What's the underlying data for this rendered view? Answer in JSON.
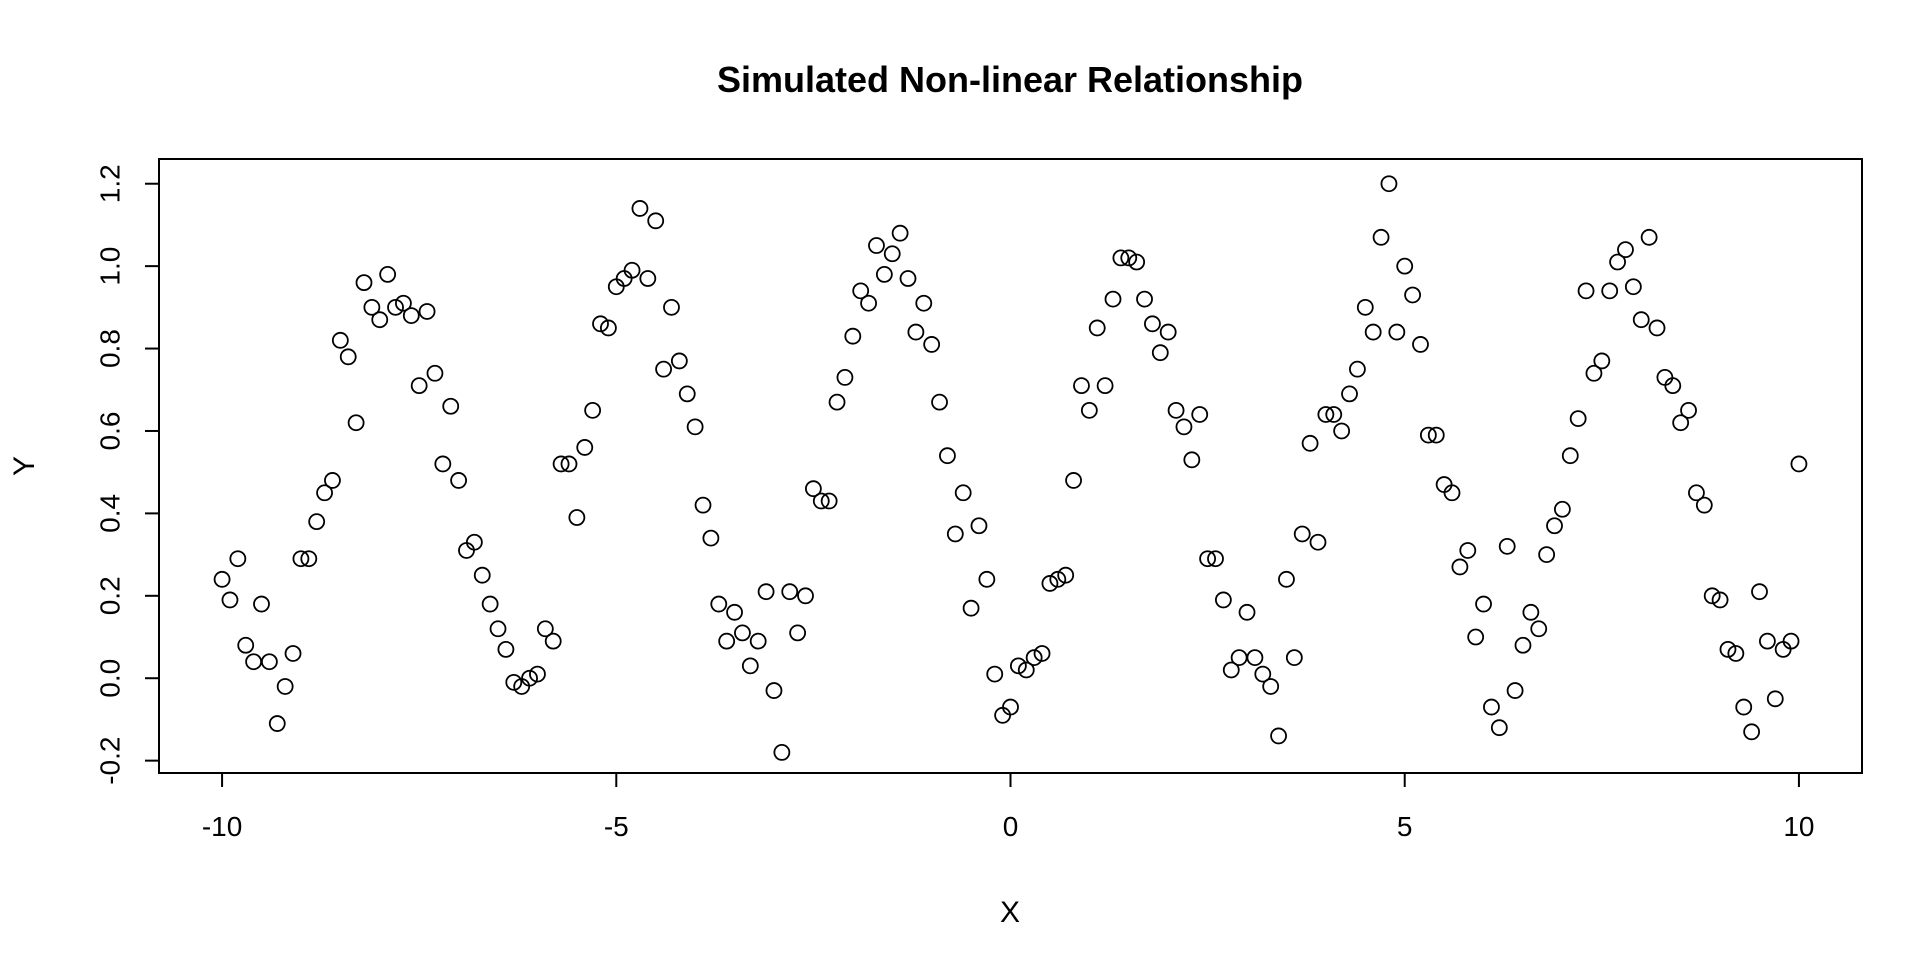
{
  "chart_data": {
    "type": "scatter",
    "title": "Simulated Non-linear Relationship",
    "xlabel": "X",
    "ylabel": "Y",
    "xlim": [
      -10.8,
      10.8
    ],
    "ylim": [
      -0.23,
      1.26
    ],
    "xticks": [
      -10,
      -5,
      0,
      5,
      10
    ],
    "xtick_labels": [
      "-10",
      "-5",
      "0",
      "5",
      "10"
    ],
    "yticks": [
      -0.2,
      0.0,
      0.2,
      0.4,
      0.6,
      0.8,
      1.0,
      1.2
    ],
    "ytick_labels": [
      "-0.2",
      "0.0",
      "0.2",
      "0.4",
      "0.6",
      "0.8",
      "1.0",
      "1.2"
    ],
    "grid": false,
    "marker": "open-circle",
    "marker_color": "#000000",
    "points": [
      [
        -10.0,
        0.24
      ],
      [
        -9.9,
        0.19
      ],
      [
        -9.8,
        0.29
      ],
      [
        -9.7,
        0.08
      ],
      [
        -9.6,
        0.04
      ],
      [
        -9.5,
        0.18
      ],
      [
        -9.4,
        0.04
      ],
      [
        -9.3,
        -0.11
      ],
      [
        -9.2,
        -0.02
      ],
      [
        -9.1,
        0.06
      ],
      [
        -9.0,
        0.29
      ],
      [
        -8.9,
        0.29
      ],
      [
        -8.8,
        0.38
      ],
      [
        -8.7,
        0.45
      ],
      [
        -8.6,
        0.48
      ],
      [
        -8.5,
        0.82
      ],
      [
        -8.4,
        0.78
      ],
      [
        -8.3,
        0.62
      ],
      [
        -8.2,
        0.96
      ],
      [
        -8.1,
        0.9
      ],
      [
        -8.0,
        0.87
      ],
      [
        -7.9,
        0.98
      ],
      [
        -7.8,
        0.9
      ],
      [
        -7.7,
        0.91
      ],
      [
        -7.6,
        0.88
      ],
      [
        -7.5,
        0.71
      ],
      [
        -7.4,
        0.89
      ],
      [
        -7.3,
        0.74
      ],
      [
        -7.2,
        0.52
      ],
      [
        -7.1,
        0.66
      ],
      [
        -7.0,
        0.48
      ],
      [
        -6.9,
        0.31
      ],
      [
        -6.8,
        0.33
      ],
      [
        -6.7,
        0.25
      ],
      [
        -6.6,
        0.18
      ],
      [
        -6.5,
        0.12
      ],
      [
        -6.4,
        0.07
      ],
      [
        -6.3,
        -0.01
      ],
      [
        -6.2,
        -0.02
      ],
      [
        -6.1,
        0.0
      ],
      [
        -6.0,
        0.01
      ],
      [
        -5.9,
        0.12
      ],
      [
        -5.8,
        0.09
      ],
      [
        -5.7,
        0.52
      ],
      [
        -5.6,
        0.52
      ],
      [
        -5.5,
        0.39
      ],
      [
        -5.4,
        0.56
      ],
      [
        -5.3,
        0.65
      ],
      [
        -5.2,
        0.86
      ],
      [
        -5.1,
        0.85
      ],
      [
        -5.0,
        0.95
      ],
      [
        -4.9,
        0.97
      ],
      [
        -4.8,
        0.99
      ],
      [
        -4.7,
        1.14
      ],
      [
        -4.6,
        0.97
      ],
      [
        -4.5,
        1.11
      ],
      [
        -4.4,
        0.75
      ],
      [
        -4.3,
        0.9
      ],
      [
        -4.2,
        0.77
      ],
      [
        -4.1,
        0.69
      ],
      [
        -4.0,
        0.61
      ],
      [
        -3.9,
        0.42
      ],
      [
        -3.8,
        0.34
      ],
      [
        -3.7,
        0.18
      ],
      [
        -3.6,
        0.09
      ],
      [
        -3.5,
        0.16
      ],
      [
        -3.4,
        0.11
      ],
      [
        -3.3,
        0.03
      ],
      [
        -3.2,
        0.09
      ],
      [
        -3.1,
        0.21
      ],
      [
        -3.0,
        -0.03
      ],
      [
        -2.9,
        -0.18
      ],
      [
        -2.8,
        0.21
      ],
      [
        -2.7,
        0.11
      ],
      [
        -2.6,
        0.2
      ],
      [
        -2.5,
        0.46
      ],
      [
        -2.4,
        0.43
      ],
      [
        -2.3,
        0.43
      ],
      [
        -2.2,
        0.67
      ],
      [
        -2.1,
        0.73
      ],
      [
        -2.0,
        0.83
      ],
      [
        -1.9,
        0.94
      ],
      [
        -1.8,
        0.91
      ],
      [
        -1.7,
        1.05
      ],
      [
        -1.6,
        0.98
      ],
      [
        -1.5,
        1.03
      ],
      [
        -1.4,
        1.08
      ],
      [
        -1.3,
        0.97
      ],
      [
        -1.2,
        0.84
      ],
      [
        -1.1,
        0.91
      ],
      [
        -1.0,
        0.81
      ],
      [
        -0.9,
        0.67
      ],
      [
        -0.8,
        0.54
      ],
      [
        -0.7,
        0.35
      ],
      [
        -0.6,
        0.45
      ],
      [
        -0.5,
        0.17
      ],
      [
        -0.4,
        0.37
      ],
      [
        -0.3,
        0.24
      ],
      [
        -0.2,
        0.01
      ],
      [
        -0.1,
        -0.09
      ],
      [
        0.0,
        -0.07
      ],
      [
        0.1,
        0.03
      ],
      [
        0.2,
        0.02
      ],
      [
        0.3,
        0.05
      ],
      [
        0.4,
        0.06
      ],
      [
        0.5,
        0.23
      ],
      [
        0.6,
        0.24
      ],
      [
        0.7,
        0.25
      ],
      [
        0.8,
        0.48
      ],
      [
        0.9,
        0.71
      ],
      [
        1.0,
        0.65
      ],
      [
        1.1,
        0.85
      ],
      [
        1.2,
        0.71
      ],
      [
        1.3,
        0.92
      ],
      [
        1.4,
        1.02
      ],
      [
        1.5,
        1.02
      ],
      [
        1.6,
        1.01
      ],
      [
        1.7,
        0.92
      ],
      [
        1.8,
        0.86
      ],
      [
        1.9,
        0.79
      ],
      [
        2.0,
        0.84
      ],
      [
        2.1,
        0.65
      ],
      [
        2.2,
        0.61
      ],
      [
        2.3,
        0.53
      ],
      [
        2.4,
        0.64
      ],
      [
        2.5,
        0.29
      ],
      [
        2.6,
        0.29
      ],
      [
        2.7,
        0.19
      ],
      [
        2.8,
        0.02
      ],
      [
        2.9,
        0.05
      ],
      [
        3.0,
        0.16
      ],
      [
        3.1,
        0.05
      ],
      [
        3.2,
        0.01
      ],
      [
        3.3,
        -0.02
      ],
      [
        3.4,
        -0.14
      ],
      [
        3.5,
        0.24
      ],
      [
        3.6,
        0.05
      ],
      [
        3.7,
        0.35
      ],
      [
        3.8,
        0.57
      ],
      [
        3.9,
        0.33
      ],
      [
        4.0,
        0.64
      ],
      [
        4.1,
        0.64
      ],
      [
        4.2,
        0.6
      ],
      [
        4.3,
        0.69
      ],
      [
        4.4,
        0.75
      ],
      [
        4.5,
        0.9
      ],
      [
        4.6,
        0.84
      ],
      [
        4.7,
        1.07
      ],
      [
        4.8,
        1.2
      ],
      [
        4.9,
        0.84
      ],
      [
        5.0,
        1.0
      ],
      [
        5.1,
        0.93
      ],
      [
        5.2,
        0.81
      ],
      [
        5.3,
        0.59
      ],
      [
        5.4,
        0.59
      ],
      [
        5.5,
        0.47
      ],
      [
        5.6,
        0.45
      ],
      [
        5.7,
        0.27
      ],
      [
        5.8,
        0.31
      ],
      [
        5.9,
        0.1
      ],
      [
        6.0,
        0.18
      ],
      [
        6.1,
        -0.07
      ],
      [
        6.2,
        -0.12
      ],
      [
        6.3,
        0.32
      ],
      [
        6.4,
        -0.03
      ],
      [
        6.5,
        0.08
      ],
      [
        6.6,
        0.16
      ],
      [
        6.7,
        0.12
      ],
      [
        6.8,
        0.3
      ],
      [
        6.9,
        0.37
      ],
      [
        7.0,
        0.41
      ],
      [
        7.1,
        0.54
      ],
      [
        7.2,
        0.63
      ],
      [
        7.3,
        0.94
      ],
      [
        7.4,
        0.74
      ],
      [
        7.5,
        0.77
      ],
      [
        7.6,
        0.94
      ],
      [
        7.7,
        1.01
      ],
      [
        7.8,
        1.04
      ],
      [
        7.9,
        0.95
      ],
      [
        8.0,
        0.87
      ],
      [
        8.1,
        1.07
      ],
      [
        8.2,
        0.85
      ],
      [
        8.3,
        0.73
      ],
      [
        8.4,
        0.71
      ],
      [
        8.5,
        0.62
      ],
      [
        8.6,
        0.65
      ],
      [
        8.7,
        0.45
      ],
      [
        8.8,
        0.42
      ],
      [
        8.9,
        0.2
      ],
      [
        9.0,
        0.19
      ],
      [
        9.1,
        0.07
      ],
      [
        9.2,
        0.06
      ],
      [
        9.3,
        -0.07
      ],
      [
        9.4,
        -0.13
      ],
      [
        9.5,
        0.21
      ],
      [
        9.6,
        0.09
      ],
      [
        9.7,
        -0.05
      ],
      [
        9.8,
        0.07
      ],
      [
        9.9,
        0.09
      ],
      [
        10.0,
        0.52
      ]
    ]
  }
}
